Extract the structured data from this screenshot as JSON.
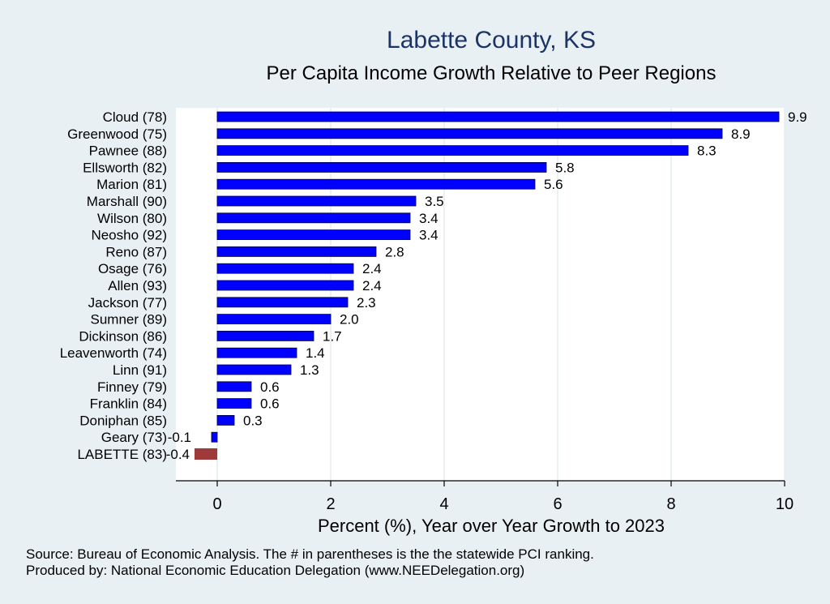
{
  "title": "Labette County, KS",
  "subtitle": "Per Capita Income Growth Relative to Peer Regions",
  "source_lines": [
    "Source: Bureau of Economic Analysis. The # in parentheses is the the statewide PCI ranking.",
    "Produced by: National Economic Education Delegation (www.NEEDelegation.org)"
  ],
  "colors": {
    "background": "#e9f0f3",
    "plot_background": "#ffffff",
    "bar": "#0000ff",
    "bar_edge": "#000044",
    "highlight_bar": "#9e3a3a",
    "title": "#1b3366"
  },
  "chart_data": {
    "type": "bar",
    "orientation": "horizontal",
    "categories": [
      "Cloud (78)",
      "Greenwood (75)",
      "Pawnee (88)",
      "Ellsworth (82)",
      "Marion (81)",
      "Marshall (90)",
      "Wilson (80)",
      "Neosho (92)",
      "Reno (87)",
      "Osage (76)",
      "Allen (93)",
      "Jackson (77)",
      "Sumner (89)",
      "Dickinson (86)",
      "Leavenworth (74)",
      "Linn (91)",
      "Finney (79)",
      "Franklin (84)",
      "Doniphan (85)",
      "Geary (73)",
      "LABETTE (83)"
    ],
    "values": [
      9.9,
      8.9,
      8.3,
      5.8,
      5.6,
      3.5,
      3.4,
      3.4,
      2.8,
      2.4,
      2.4,
      2.3,
      2.0,
      1.7,
      1.4,
      1.3,
      0.6,
      0.6,
      0.3,
      -0.1,
      -0.4
    ],
    "value_labels": [
      "9.9",
      "8.9",
      "8.3",
      "5.8",
      "5.6",
      "3.5",
      "3.4",
      "3.4",
      "2.8",
      "2.4",
      "2.4",
      "2.3",
      "2.0",
      "1.7",
      "1.4",
      "1.3",
      "0.6",
      "0.6",
      "0.3",
      "-0.1",
      "-0.4"
    ],
    "highlight": "LABETTE (83)",
    "xlabel": "Percent (%), Year over Year Growth to 2023",
    "ylabel": "",
    "xlim": [
      -0.73,
      10.35
    ],
    "xticks": [
      0,
      2,
      4,
      6,
      8,
      10
    ],
    "xtick_labels": [
      "0",
      "2",
      "4",
      "6",
      "8",
      "10"
    ],
    "grid": true,
    "legend": "none"
  }
}
